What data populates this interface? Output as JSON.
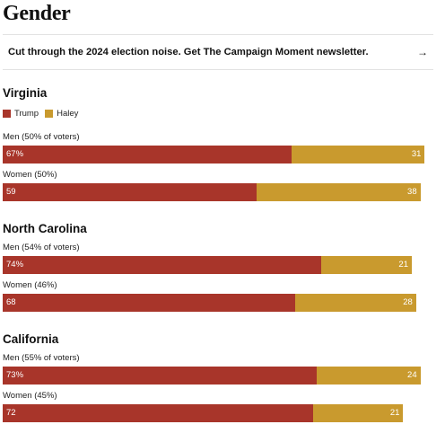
{
  "page": {
    "title": "Gender"
  },
  "promo": {
    "text": "Cut through the 2024 election noise. Get The Campaign Moment newsletter.",
    "arrow": "→"
  },
  "colors": {
    "trump": "#a8352a",
    "haley": "#c99a2e"
  },
  "chart_data": {
    "type": "bar",
    "orientation": "horizontal-stacked",
    "legend": [
      {
        "name": "Trump",
        "color": "#a8352a"
      },
      {
        "name": "Haley",
        "color": "#c99a2e"
      }
    ],
    "xlim": [
      0,
      100
    ],
    "states": [
      {
        "name": "Virginia",
        "groups": [
          {
            "label": "Men (50% of voters)",
            "trump": 67,
            "haley": 31,
            "trump_label": "67%",
            "haley_label": "31"
          },
          {
            "label": "Women (50%)",
            "trump": 59,
            "haley": 38,
            "trump_label": "59",
            "haley_label": "38"
          }
        ]
      },
      {
        "name": "North Carolina",
        "groups": [
          {
            "label": "Men (54% of voters)",
            "trump": 74,
            "haley": 21,
            "trump_label": "74%",
            "haley_label": "21"
          },
          {
            "label": "Women (46%)",
            "trump": 68,
            "haley": 28,
            "trump_label": "68",
            "haley_label": "28"
          }
        ]
      },
      {
        "name": "California",
        "groups": [
          {
            "label": "Men (55% of voters)",
            "trump": 73,
            "haley": 24,
            "trump_label": "73%",
            "haley_label": "24"
          },
          {
            "label": "Women (45%)",
            "trump": 72,
            "haley": 21,
            "trump_label": "72",
            "haley_label": "21"
          }
        ]
      }
    ]
  }
}
